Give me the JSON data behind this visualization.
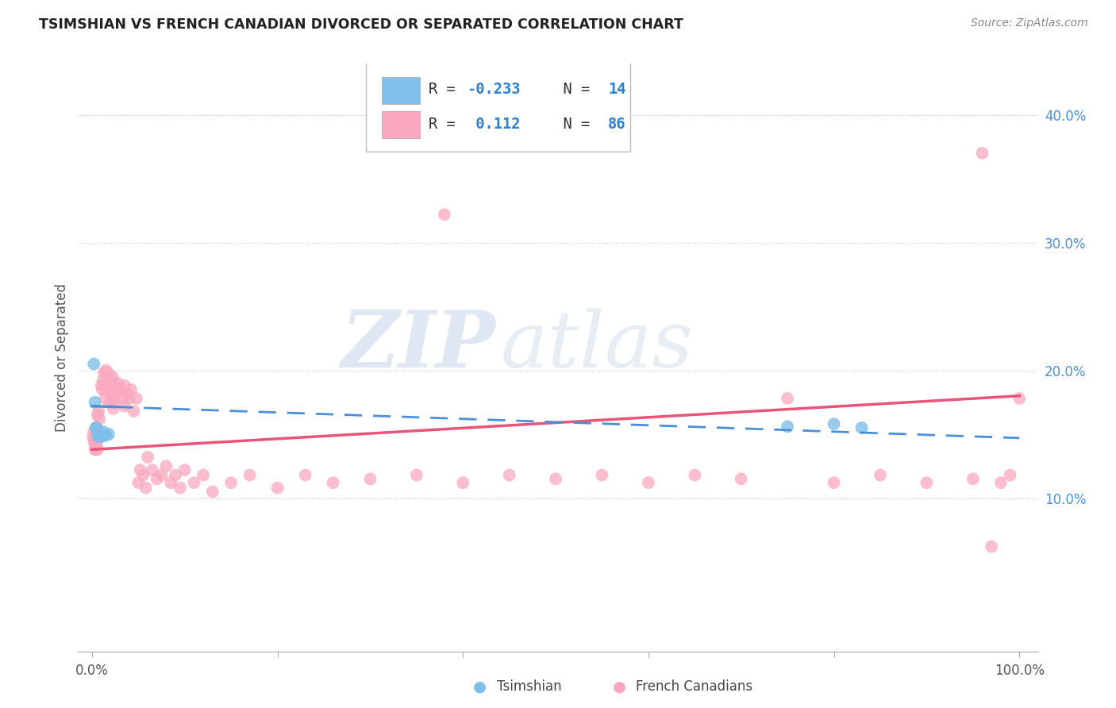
{
  "title": "TSIMSHIAN VS FRENCH CANADIAN DIVORCED OR SEPARATED CORRELATION CHART",
  "source": "Source: ZipAtlas.com",
  "ylabel": "Divorced or Separated",
  "legend_label1": "Tsimshian",
  "legend_label2": "French Canadians",
  "R1": -0.233,
  "N1": 14,
  "R2": 0.112,
  "N2": 86,
  "color_blue": "#7fbfea",
  "color_pink": "#f9a8c0",
  "color_blue_line": "#4a90d9",
  "color_pink_line": "#e8547a",
  "watermark_zip": "ZIP",
  "watermark_atlas": "atlas",
  "background_color": "#ffffff",
  "grid_color": "#d0d0d0",
  "tsimshian_x": [
    0.002,
    0.003,
    0.004,
    0.005,
    0.006,
    0.007,
    0.008,
    0.01,
    0.012,
    0.015,
    0.018,
    0.75,
    0.8,
    0.83
  ],
  "tsimshian_y": [
    0.205,
    0.175,
    0.155,
    0.155,
    0.15,
    0.148,
    0.15,
    0.148,
    0.152,
    0.149,
    0.15,
    0.156,
    0.158,
    0.155
  ],
  "french_x": [
    0.001,
    0.002,
    0.002,
    0.003,
    0.003,
    0.004,
    0.004,
    0.005,
    0.005,
    0.006,
    0.006,
    0.007,
    0.007,
    0.008,
    0.008,
    0.009,
    0.01,
    0.01,
    0.011,
    0.012,
    0.013,
    0.014,
    0.015,
    0.015,
    0.016,
    0.017,
    0.018,
    0.019,
    0.02,
    0.021,
    0.022,
    0.023,
    0.025,
    0.025,
    0.027,
    0.028,
    0.03,
    0.032,
    0.035,
    0.035,
    0.038,
    0.04,
    0.042,
    0.045,
    0.048,
    0.05,
    0.052,
    0.055,
    0.058,
    0.06,
    0.065,
    0.07,
    0.075,
    0.08,
    0.085,
    0.09,
    0.095,
    0.1,
    0.11,
    0.12,
    0.13,
    0.15,
    0.17,
    0.2,
    0.23,
    0.26,
    0.3,
    0.35,
    0.4,
    0.45,
    0.5,
    0.55,
    0.6,
    0.65,
    0.7,
    0.75,
    0.8,
    0.85,
    0.9,
    0.95,
    0.97,
    0.98,
    0.99,
    1.0,
    0.38,
    0.96
  ],
  "french_y": [
    0.148,
    0.145,
    0.152,
    0.138,
    0.143,
    0.148,
    0.138,
    0.155,
    0.142,
    0.165,
    0.138,
    0.148,
    0.168,
    0.15,
    0.162,
    0.148,
    0.188,
    0.15,
    0.185,
    0.192,
    0.198,
    0.178,
    0.2,
    0.185,
    0.188,
    0.198,
    0.185,
    0.175,
    0.192,
    0.178,
    0.195,
    0.17,
    0.188,
    0.175,
    0.182,
    0.19,
    0.185,
    0.178,
    0.188,
    0.172,
    0.182,
    0.178,
    0.185,
    0.168,
    0.178,
    0.112,
    0.122,
    0.118,
    0.108,
    0.132,
    0.122,
    0.115,
    0.118,
    0.125,
    0.112,
    0.118,
    0.108,
    0.122,
    0.112,
    0.118,
    0.105,
    0.112,
    0.118,
    0.108,
    0.118,
    0.112,
    0.115,
    0.118,
    0.112,
    0.118,
    0.115,
    0.118,
    0.112,
    0.118,
    0.115,
    0.178,
    0.112,
    0.118,
    0.112,
    0.115,
    0.062,
    0.112,
    0.118,
    0.178,
    0.322,
    0.37
  ],
  "ylim_min": -0.02,
  "ylim_max": 0.44,
  "xlim_min": -0.015,
  "xlim_max": 1.02
}
